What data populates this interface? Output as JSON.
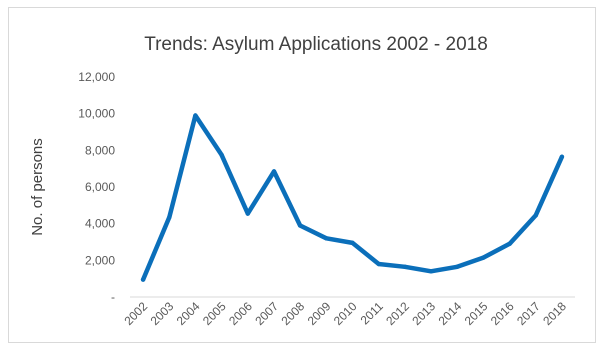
{
  "chart_data": {
    "type": "line",
    "title": "Trends: Asylum Applications 2002 - 2018",
    "xlabel": "",
    "ylabel": "No. of persons",
    "categories": [
      "2002",
      "2003",
      "2004",
      "2005",
      "2006",
      "2007",
      "2008",
      "2009",
      "2010",
      "2011",
      "2012",
      "2013",
      "2014",
      "2015",
      "2016",
      "2017",
      "2018"
    ],
    "series": [
      {
        "values": [
          950,
          4350,
          9900,
          7750,
          4550,
          6850,
          3900,
          3200,
          2950,
          1800,
          1650,
          1400,
          1650,
          2150,
          2900,
          4450,
          7650
        ],
        "color": "#0b6fba"
      }
    ],
    "ylim": [
      0,
      12000
    ],
    "yticks": [
      0,
      2000,
      4000,
      6000,
      8000,
      10000,
      12000
    ],
    "ytick_labels": [
      "-",
      "2,000",
      "4,000",
      "6,000",
      "8,000",
      "10,000",
      "12,000"
    ],
    "grid": false,
    "legend": "none"
  }
}
